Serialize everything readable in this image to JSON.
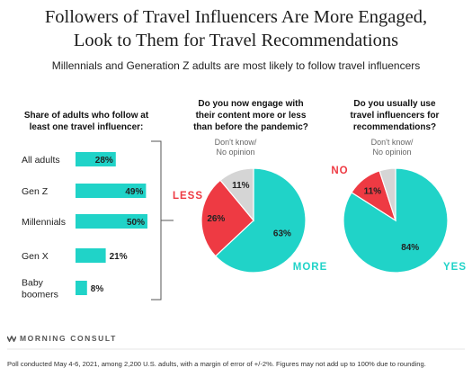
{
  "title_line1": "Followers of Travel Influencers Are More Engaged,",
  "title_line2": "Look to Them for Travel Recommendations",
  "subtitle": "Millennials and Generation Z adults are most likely to follow travel influencers",
  "brand": "MORNING CONSULT",
  "footnote": "Poll conducted May 4-6, 2021, among 2,200 U.S. adults, with a margin of error of +/-2%. Figures may not add up to 100% due to rounding.",
  "colors": {
    "teal": "#20D3C8",
    "red": "#EE3A43",
    "gray": "#D5D5D5",
    "bracket": "#555555"
  },
  "chart_data": [
    {
      "type": "bar",
      "title": "Share of adults who follow at least one travel influencer:",
      "title_lines": [
        "Share of adults who follow at",
        "least one travel influencer:"
      ],
      "categories": [
        "All adults",
        "Gen Z",
        "Millennials",
        "Gen X",
        "Baby boomers"
      ],
      "category_lines": [
        [
          "All adults"
        ],
        [
          "Gen Z"
        ],
        [
          "Millennials"
        ],
        [
          "Gen X"
        ],
        [
          "Baby",
          "boomers"
        ]
      ],
      "values": [
        28,
        49,
        50,
        21,
        8
      ],
      "value_labels": [
        "28%",
        "49%",
        "50%",
        "21%",
        "8%"
      ],
      "unit": "%",
      "color": "#20D3C8"
    },
    {
      "type": "pie",
      "title": "Do you now engage with their content more or less than before the pandemic?",
      "title_lines": [
        "Do you now engage with",
        "their content more or less",
        "than before the pandemic?"
      ],
      "slices": [
        {
          "label": "MORE",
          "value": 63,
          "value_label": "63%",
          "color": "#20D3C8"
        },
        {
          "label": "LESS",
          "value": 26,
          "value_label": "26%",
          "color": "#EE3A43"
        },
        {
          "label": "Don't know/ No opinion",
          "label_lines": [
            "Don't know/",
            "No opinion"
          ],
          "value": 11,
          "value_label": "11%",
          "color": "#D5D5D5"
        }
      ]
    },
    {
      "type": "pie",
      "title": "Do you usually use travel influencers for recommendations?",
      "title_lines": [
        "Do you usually use",
        "travel influencers for",
        "recommendations?"
      ],
      "slices": [
        {
          "label": "YES",
          "value": 84,
          "value_label": "84%",
          "color": "#20D3C8"
        },
        {
          "label": "NO",
          "value": 11,
          "value_label": "11%",
          "color": "#EE3A43"
        },
        {
          "label": "Don't know/ No opinion",
          "label_lines": [
            "Don't know/",
            "No opinion"
          ],
          "value": 5,
          "value_label": "",
          "color": "#D5D5D5"
        }
      ]
    }
  ]
}
